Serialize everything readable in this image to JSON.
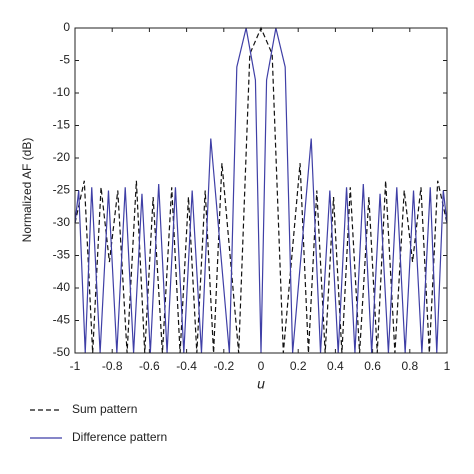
{
  "chart_data": {
    "type": "line",
    "x_label": "u",
    "y_label": "Normalized AF (dB)",
    "xlim": [
      -1,
      1
    ],
    "ylim": [
      -50,
      0
    ],
    "xticks": [
      -1,
      -0.8,
      -0.6,
      -0.4,
      -0.2,
      0,
      0.2,
      0.4,
      0.6,
      0.8,
      1
    ],
    "yticks": [
      0,
      -5,
      -10,
      -15,
      -20,
      -25,
      -30,
      -35,
      -40,
      -45,
      -50
    ],
    "grid": false,
    "legend": "bottom",
    "series": [
      {
        "name": "Sum pattern",
        "color": "#111111",
        "dash": true,
        "x": [
          -1,
          -0.95,
          -0.905,
          -0.86,
          -0.815,
          -0.77,
          -0.72,
          -0.67,
          -0.625,
          -0.58,
          -0.53,
          -0.48,
          -0.435,
          -0.39,
          -0.345,
          -0.3,
          -0.255,
          -0.21,
          -0.12,
          -0.06,
          0,
          0.06,
          0.12,
          0.21,
          0.255,
          0.3,
          0.345,
          0.39,
          0.435,
          0.48,
          0.53,
          0.58,
          0.625,
          0.67,
          0.72,
          0.77,
          0.815,
          0.86,
          0.905,
          0.95,
          1
        ],
        "values": [
          -30,
          -23.5,
          -50,
          -24.5,
          -36,
          -25,
          -50,
          -23.5,
          -50,
          -26,
          -50,
          -24.5,
          -50,
          -26,
          -50,
          -25,
          -50,
          -20.8,
          -50,
          -4,
          0,
          -4,
          -50,
          -20.8,
          -50,
          -25,
          -50,
          -26,
          -50,
          -24.5,
          -50,
          -26,
          -50,
          -23.5,
          -50,
          -25,
          -36,
          -24.5,
          -50,
          -23.5,
          -30
        ]
      },
      {
        "name": "Difference pattern",
        "color": "#3f3fa6",
        "dash": false,
        "x": [
          -1,
          -0.98,
          -0.945,
          -0.91,
          -0.865,
          -0.82,
          -0.775,
          -0.73,
          -0.685,
          -0.64,
          -0.595,
          -0.55,
          -0.505,
          -0.46,
          -0.415,
          -0.37,
          -0.32,
          -0.27,
          -0.17,
          -0.13,
          -0.08,
          -0.03,
          0,
          0.03,
          0.08,
          0.13,
          0.17,
          0.27,
          0.32,
          0.37,
          0.415,
          0.46,
          0.505,
          0.55,
          0.595,
          0.64,
          0.685,
          0.73,
          0.775,
          0.82,
          0.865,
          0.91,
          0.945,
          0.98,
          1
        ],
        "values": [
          -30,
          -25,
          -50,
          -24.5,
          -50,
          -25,
          -50,
          -24.5,
          -50,
          -25.5,
          -50,
          -24,
          -50,
          -24.5,
          -50,
          -25,
          -50,
          -17,
          -50,
          -6,
          0,
          -8,
          -50,
          -8,
          0,
          -6,
          -50,
          -17,
          -50,
          -25,
          -50,
          -24.5,
          -50,
          -24,
          -50,
          -25.5,
          -50,
          -24.5,
          -50,
          -25,
          -50,
          -24.5,
          -50,
          -25,
          -30
        ]
      }
    ]
  }
}
